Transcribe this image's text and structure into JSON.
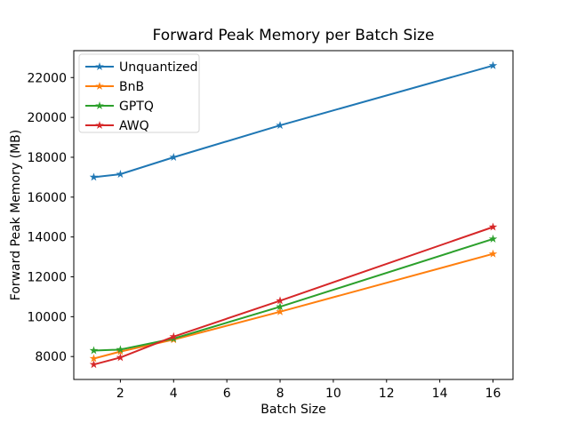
{
  "figure": {
    "background": "#ffffff",
    "frame_color": "#000000",
    "legend_border_color": "#d5d5d5"
  },
  "chart_data": {
    "type": "line",
    "title": "Forward Peak Memory per Batch Size",
    "xlabel": "Batch Size",
    "ylabel": "Forward Peak Memory (MB)",
    "x": [
      1,
      2,
      4,
      8,
      16
    ],
    "series": [
      {
        "name": "Unquantized",
        "color": "#1f77b4",
        "marker": "star",
        "values": [
          17000,
          17150,
          18000,
          19600,
          22600
        ]
      },
      {
        "name": "BnB",
        "color": "#ff7f0e",
        "marker": "star",
        "values": [
          7900,
          8250,
          8850,
          10250,
          13150
        ]
      },
      {
        "name": "GPTQ",
        "color": "#2ca02c",
        "marker": "star",
        "values": [
          8300,
          8350,
          8900,
          10500,
          13900
        ]
      },
      {
        "name": "AWQ",
        "color": "#d62728",
        "marker": "star",
        "values": [
          7600,
          7950,
          9000,
          10800,
          14500
        ]
      }
    ],
    "xlim": [
      0.25,
      16.75
    ],
    "ylim": [
      6850,
      23350
    ],
    "xticks": [
      2,
      4,
      6,
      8,
      10,
      12,
      14,
      16
    ],
    "yticks": [
      8000,
      10000,
      12000,
      14000,
      16000,
      18000,
      20000,
      22000
    ],
    "grid": false,
    "legend_position": "upper left"
  }
}
